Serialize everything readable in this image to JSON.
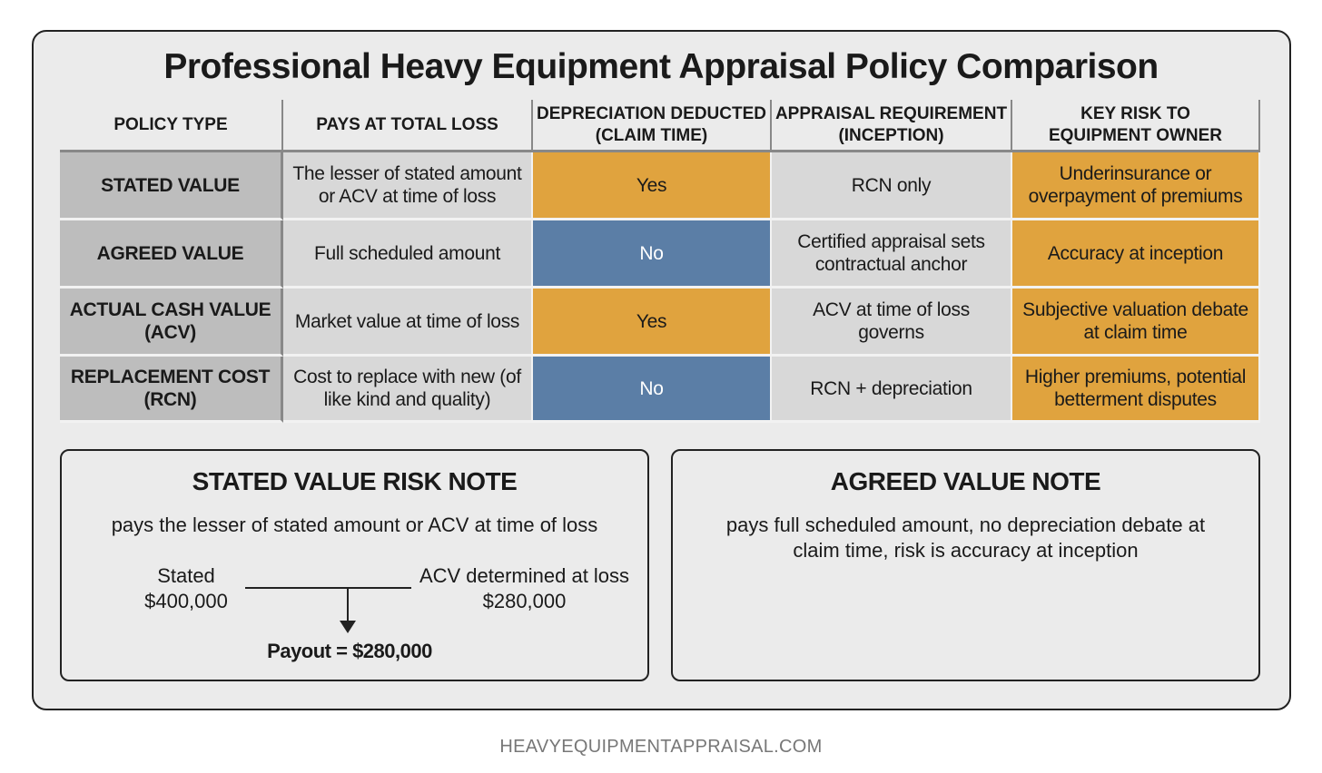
{
  "title": "Professional Heavy Equipment Appraisal Policy Comparison",
  "headers": [
    "POLICY TYPE",
    "PAYS AT TOTAL LOSS",
    "DEPRECIATION DEDUCTED\n(CLAIM TIME)",
    "APPRAISAL REQUIREMENT\n(INCEPTION)",
    "KEY RISK TO\nEQUIPMENT OWNER"
  ],
  "rows": [
    {
      "policy": "STATED VALUE",
      "pays": "The lesser of stated amount or ACV at time of loss",
      "depreciation": "Yes",
      "appraisal": "RCN only",
      "risk": "Underinsurance or overpayment of premiums"
    },
    {
      "policy": "AGREED VALUE",
      "pays": "Full scheduled amount",
      "depreciation": "No",
      "appraisal": "Certified appraisal sets contractual anchor",
      "risk": "Accuracy at inception"
    },
    {
      "policy": "ACTUAL CASH VALUE (ACV)",
      "pays": "Market value at time of loss",
      "depreciation": "Yes",
      "appraisal": "ACV at time of loss governs",
      "risk": "Subjective valuation debate at claim time"
    },
    {
      "policy": "REPLACEMENT COST (RCN)",
      "pays": "Cost to replace with new (of like kind and quality)",
      "depreciation": "No",
      "appraisal": "RCN + depreciation",
      "risk": "Higher premiums, potential betterment disputes"
    }
  ],
  "colors": {
    "yes": "#e0a33e",
    "no": "#5b7ea6",
    "risk": "#e0a33e",
    "policy": "#bdbdbd",
    "cell": "#d8d8d8"
  },
  "stated_note": {
    "title": "STATED VALUE RISK NOTE",
    "text": "pays the lesser of stated amount or ACV at time of loss",
    "stated_label": "Stated",
    "stated_value": "$400,000",
    "acv_label": "ACV determined at loss",
    "acv_value": "$280,000",
    "payout": "Payout = $280,000"
  },
  "agreed_note": {
    "title": "AGREED VALUE NOTE",
    "text": "pays full scheduled amount, no depreciation debate at claim time, risk is accuracy at inception"
  },
  "footer": "HEAVYEQUIPMENTAPPRAISAL.COM"
}
